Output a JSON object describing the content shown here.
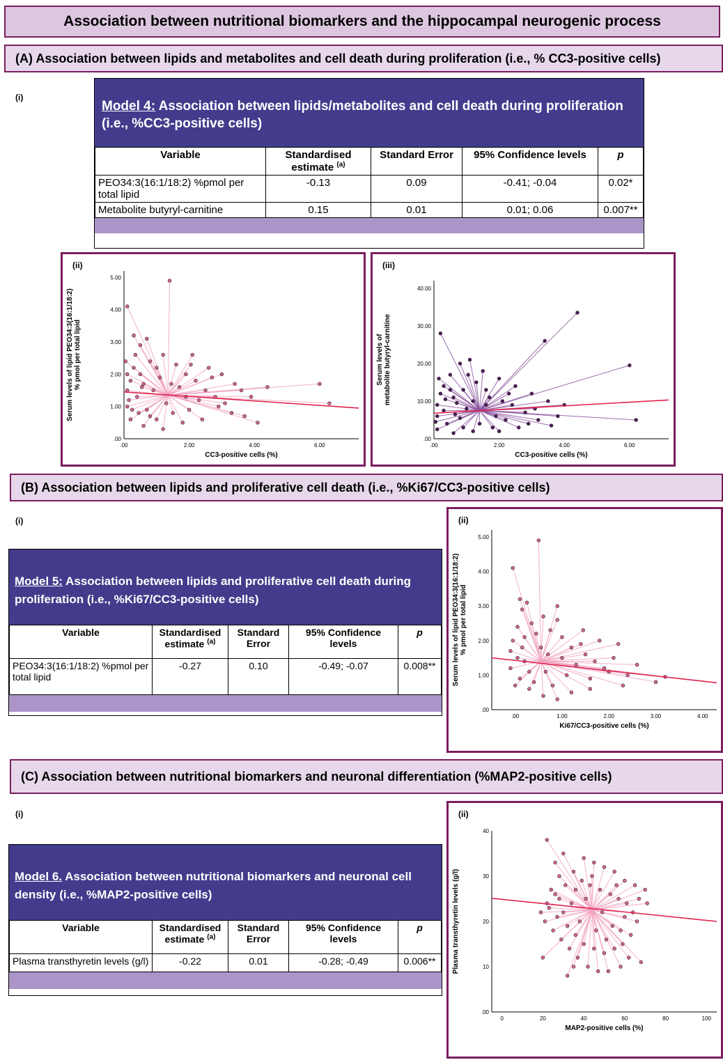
{
  "title": "Association between nutritional biomarkers and the hippocampal neurogenic process",
  "sections": {
    "A": {
      "title": "(A) Association between lipids and metabolites and cell death during proliferation (i.e., % CC3-positive cells)",
      "i_label": "(i)",
      "table": {
        "model_label": "Model 4:",
        "caption": "Association between lipids/metabolites and cell death during proliferation (i.e., %CC3-positive cells)",
        "headers": [
          "Variable",
          "Standardised estimate",
          "Standard Error",
          "95% Confidence levels",
          "p"
        ],
        "sup": "(a)",
        "rows": [
          [
            "PEO34:3(16:1/18:2) %pmol per total lipid",
            "-0.13",
            "0.09",
            "-0.41; -0.04",
            "0.02*"
          ],
          [
            "Metabolite butyryl-carnitine",
            "0.15",
            "0.01",
            "0.01; 0.06",
            "0.007**"
          ]
        ]
      }
    },
    "B": {
      "title": "(B) Association between lipids and proliferative cell death (i.e., %Ki67/CC3-positive cells)",
      "i_label": "(i)",
      "table": {
        "model_label": "Model 5:",
        "caption": "Association between lipids and proliferative cell death during proliferation (i.e., %Ki67/CC3-positive cells)",
        "headers": [
          "Variable",
          "Standardised estimate",
          "Standard Error",
          "95% Confidence levels",
          "p"
        ],
        "sup": "(a)",
        "rows": [
          [
            "PEO34:3(16:1/18:2) %pmol per total lipid",
            "-0.27",
            "0.10",
            "-0.49; -0.07",
            "0.008**"
          ]
        ]
      }
    },
    "C": {
      "title": "(C) Association between nutritional biomarkers and neuronal differentiation (%MAP2-positive cells)",
      "i_label": "(i)",
      "table": {
        "model_label": "Model 6.",
        "caption": "Association between nutritional biomarkers and neuronal cell density (i.e., %MAP2-positive cells)",
        "headers": [
          "Variable",
          "Standardised estimate",
          "Standard Error",
          "95% Confidence levels",
          "p"
        ],
        "sup": "(a)",
        "rows": [
          [
            "Plasma transthyretin levels (g/l)",
            "-0.22",
            "0.01",
            "-0.28; -0.49",
            "0.006**"
          ]
        ]
      }
    }
  },
  "chart_data": [
    {
      "panel": "(ii)",
      "type": "scatter",
      "xlabel": "CC3-positive cells (%)",
      "ylabel": "Serum levels of lipid PEO34:3(16:1/18:2) % pmol per total lipid",
      "xlim": [
        0,
        7.2
      ],
      "ylim": [
        0,
        5.2
      ],
      "xticks": [
        ".00",
        "2.00",
        "4.00",
        "6.00"
      ],
      "xtick_values": [
        0,
        2,
        4,
        6
      ],
      "yticks": [
        ".00",
        "1.00",
        "2.00",
        "3.00",
        "4.00",
        "5.00"
      ],
      "ytick_values": [
        0,
        1,
        2,
        3,
        4,
        5
      ],
      "centroid": [
        1.35,
        1.35
      ],
      "fit": [
        [
          0,
          1.45
        ],
        [
          7.2,
          0.95
        ]
      ],
      "points": [
        [
          0.1,
          4.1
        ],
        [
          1.4,
          4.9
        ],
        [
          0.3,
          3.2
        ],
        [
          0.5,
          2.9
        ],
        [
          0.7,
          3.1
        ],
        [
          2.1,
          2.6
        ],
        [
          2.6,
          2.2
        ],
        [
          3.4,
          1.7
        ],
        [
          6.3,
          1.1
        ],
        [
          6.0,
          1.7
        ],
        [
          4.4,
          1.6
        ],
        [
          3.9,
          1.3
        ],
        [
          4.1,
          0.5
        ],
        [
          3.7,
          0.7
        ],
        [
          2.9,
          1.0
        ],
        [
          2.4,
          0.6
        ],
        [
          1.8,
          0.5
        ],
        [
          1.2,
          0.3
        ],
        [
          0.6,
          0.4
        ],
        [
          0.2,
          0.6
        ],
        [
          0.1,
          1.0
        ],
        [
          0.1,
          1.5
        ],
        [
          0.1,
          2.0
        ],
        [
          0.3,
          2.2
        ],
        [
          0.5,
          2.0
        ],
        [
          0.6,
          1.7
        ],
        [
          0.8,
          2.4
        ],
        [
          1.0,
          2.2
        ],
        [
          1.2,
          2.6
        ],
        [
          1.6,
          2.3
        ],
        [
          1.9,
          2.0
        ],
        [
          2.2,
          1.8
        ],
        [
          2.5,
          1.5
        ],
        [
          2.8,
          1.3
        ],
        [
          3.1,
          1.1
        ],
        [
          3.3,
          0.8
        ],
        [
          2.0,
          0.9
        ],
        [
          1.5,
          0.8
        ],
        [
          1.0,
          0.6
        ],
        [
          0.7,
          0.9
        ],
        [
          0.4,
          1.3
        ],
        [
          0.2,
          1.8
        ],
        [
          0.9,
          1.5
        ],
        [
          1.7,
          1.6
        ],
        [
          2.3,
          1.2
        ],
        [
          3.0,
          2.0
        ],
        [
          0.05,
          2.4
        ],
        [
          0.15,
          1.2
        ],
        [
          0.45,
          0.8
        ],
        [
          1.1,
          1.9
        ],
        [
          1.3,
          1.1
        ],
        [
          0.35,
          2.6
        ],
        [
          2.7,
          1.9
        ],
        [
          3.6,
          1.5
        ],
        [
          0.8,
          0.7
        ],
        [
          1.9,
          1.3
        ],
        [
          0.25,
          0.9
        ],
        [
          0.55,
          1.6
        ],
        [
          1.45,
          1.7
        ],
        [
          2.05,
          2.3
        ]
      ],
      "point_color": "#d06a94",
      "line_color": "#f2a4c0",
      "fit_color": "#e0224f"
    },
    {
      "panel": "(iii)",
      "type": "scatter",
      "xlabel": "CC3-positive cells (%)",
      "ylabel": "Serum levels of metabolite butyryl-carnitine",
      "xlim": [
        0,
        7.2
      ],
      "ylim": [
        0,
        42
      ],
      "xticks": [
        ".00",
        "2.00",
        "4.00",
        "6.00"
      ],
      "xtick_values": [
        0,
        2,
        4,
        6
      ],
      "yticks": [
        ".00",
        "10.00",
        "20.00",
        "30.00",
        "40.00"
      ],
      "ytick_values": [
        0,
        10,
        20,
        30,
        40
      ],
      "centroid": [
        1.4,
        7.5
      ],
      "fit": [
        [
          0,
          6.8
        ],
        [
          7.2,
          10.3
        ]
      ],
      "points": [
        [
          0.2,
          28
        ],
        [
          4.4,
          33.5
        ],
        [
          6.0,
          19.5
        ],
        [
          3.4,
          26
        ],
        [
          6.2,
          5
        ],
        [
          1.1,
          21
        ],
        [
          0.5,
          17
        ],
        [
          0.8,
          20
        ],
        [
          1.5,
          18
        ],
        [
          2.0,
          16
        ],
        [
          2.5,
          14
        ],
        [
          3.0,
          12
        ],
        [
          3.5,
          10
        ],
        [
          4.0,
          9
        ],
        [
          2.2,
          5
        ],
        [
          1.8,
          3
        ],
        [
          1.2,
          2
        ],
        [
          0.6,
          1.5
        ],
        [
          0.1,
          2.5
        ],
        [
          0.1,
          6
        ],
        [
          0.1,
          9
        ],
        [
          0.2,
          12
        ],
        [
          0.3,
          14
        ],
        [
          0.6,
          11
        ],
        [
          0.9,
          13
        ],
        [
          1.3,
          15
        ],
        [
          1.7,
          11
        ],
        [
          2.4,
          9
        ],
        [
          2.8,
          7
        ],
        [
          3.2,
          5
        ],
        [
          3.6,
          3.5
        ],
        [
          0.4,
          4
        ],
        [
          0.8,
          5.5
        ],
        [
          1.0,
          8
        ],
        [
          1.6,
          9
        ],
        [
          2.1,
          10
        ],
        [
          0.3,
          7.5
        ],
        [
          0.7,
          9.5
        ],
        [
          1.4,
          4
        ],
        [
          2.6,
          3
        ],
        [
          3.1,
          8
        ],
        [
          0.15,
          16
        ],
        [
          0.5,
          13
        ],
        [
          1.9,
          6
        ],
        [
          2.3,
          12
        ],
        [
          0.9,
          3
        ],
        [
          1.2,
          10
        ],
        [
          0.35,
          10.5
        ],
        [
          2.9,
          4
        ],
        [
          1.6,
          13
        ],
        [
          0.05,
          4.5
        ],
        [
          0.65,
          6.5
        ],
        [
          2.0,
          2
        ],
        [
          3.8,
          6
        ],
        [
          1.05,
          17
        ]
      ],
      "point_color": "#4a1f5c",
      "line_color": "#8b55a0",
      "fit_color": "#e0224f"
    },
    {
      "panel": "(ii)",
      "type": "scatter",
      "xlabel": "Ki67/CC3-positive cells (%)",
      "ylabel": "Serum levels of lipid PEO34:3(16:1/18:2) % pmol per total lipid",
      "xlim": [
        -0.5,
        4.3
      ],
      "ylim": [
        0,
        5.2
      ],
      "xticks": [
        ".00",
        "1.00",
        "2.00",
        "3.00",
        "4.00"
      ],
      "xtick_values": [
        0,
        1,
        2,
        3,
        4
      ],
      "yticks": [
        ".00",
        "1.00",
        "2.00",
        "3.00",
        "4.00",
        "5.00"
      ],
      "ytick_values": [
        0,
        1,
        2,
        3,
        4,
        5
      ],
      "centroid": [
        0.55,
        1.4
      ],
      "fit": [
        [
          -0.5,
          1.5
        ],
        [
          4.3,
          0.78
        ]
      ],
      "points": [
        [
          -0.05,
          4.1
        ],
        [
          0.5,
          4.9
        ],
        [
          0.1,
          3.2
        ],
        [
          0.15,
          2.9
        ],
        [
          0.25,
          3.1
        ],
        [
          0.9,
          3.0
        ],
        [
          1.4,
          1.9
        ],
        [
          1.8,
          2.0
        ],
        [
          3.2,
          0.95
        ],
        [
          3.0,
          0.8
        ],
        [
          2.1,
          1.5
        ],
        [
          1.9,
          1.2
        ],
        [
          2.3,
          0.7
        ],
        [
          1.6,
          0.6
        ],
        [
          1.2,
          0.5
        ],
        [
          0.9,
          0.3
        ],
        [
          0.6,
          0.4
        ],
        [
          0.3,
          0.6
        ],
        [
          0.1,
          0.9
        ],
        [
          -0.1,
          1.2
        ],
        [
          -0.1,
          1.7
        ],
        [
          -0.05,
          2.0
        ],
        [
          0.05,
          2.4
        ],
        [
          0.2,
          2.1
        ],
        [
          0.35,
          2.5
        ],
        [
          0.45,
          2.2
        ],
        [
          0.6,
          2.7
        ],
        [
          0.75,
          2.3
        ],
        [
          1.0,
          2.1
        ],
        [
          1.2,
          1.8
        ],
        [
          1.5,
          1.6
        ],
        [
          1.7,
          1.4
        ],
        [
          2.0,
          1.1
        ],
        [
          2.4,
          1.0
        ],
        [
          0.4,
          0.8
        ],
        [
          0.8,
          0.7
        ],
        [
          1.1,
          1.0
        ],
        [
          0.2,
          1.4
        ],
        [
          0.7,
          1.6
        ],
        [
          1.3,
          1.3
        ],
        [
          2.2,
          1.9
        ],
        [
          0.0,
          0.7
        ],
        [
          0.55,
          1.8
        ],
        [
          1.0,
          1.5
        ],
        [
          1.6,
          0.9
        ],
        [
          0.3,
          1.1
        ],
        [
          0.05,
          1.5
        ],
        [
          0.9,
          2.6
        ],
        [
          1.45,
          2.3
        ],
        [
          0.65,
          1.1
        ],
        [
          2.6,
          1.3
        ],
        [
          0.15,
          1.8
        ]
      ],
      "point_color": "#d06a94",
      "line_color": "#f2a4c0",
      "fit_color": "#e0224f"
    },
    {
      "panel": "(ii)",
      "type": "scatter",
      "xlabel": "MAP2-positive cells (%)",
      "ylabel": "Plasma transthyretin levels (g/l)",
      "xlim": [
        -5,
        105
      ],
      "ylim": [
        0,
        40
      ],
      "xticks": [
        "0",
        "20",
        "40",
        "60",
        "80",
        "100"
      ],
      "xtick_values": [
        0,
        20,
        40,
        60,
        80,
        100
      ],
      "yticks": [
        ".00",
        "10",
        "20",
        "30",
        "40"
      ],
      "ytick_values": [
        0,
        10,
        20,
        30,
        40
      ],
      "centroid": [
        44,
        22.5
      ],
      "fit": [
        [
          -5,
          25.1
        ],
        [
          105,
          20.0
        ]
      ],
      "points": [
        [
          22,
          38
        ],
        [
          20,
          12
        ],
        [
          32,
          8
        ],
        [
          30,
          35
        ],
        [
          26,
          33
        ],
        [
          28,
          30
        ],
        [
          35,
          31
        ],
        [
          40,
          34
        ],
        [
          45,
          33
        ],
        [
          50,
          32
        ],
        [
          55,
          31
        ],
        [
          60,
          29
        ],
        [
          65,
          28
        ],
        [
          70,
          27
        ],
        [
          68,
          11
        ],
        [
          62,
          12
        ],
        [
          58,
          10
        ],
        [
          52,
          9
        ],
        [
          47,
          9
        ],
        [
          42,
          10
        ],
        [
          37,
          12
        ],
        [
          33,
          14
        ],
        [
          29,
          16
        ],
        [
          25,
          18
        ],
        [
          21,
          20
        ],
        [
          19,
          22
        ],
        [
          22,
          24
        ],
        [
          24,
          27
        ],
        [
          28,
          25
        ],
        [
          31,
          28
        ],
        [
          36,
          27
        ],
        [
          39,
          29
        ],
        [
          43,
          28
        ],
        [
          48,
          27
        ],
        [
          53,
          26
        ],
        [
          57,
          25
        ],
        [
          61,
          24
        ],
        [
          64,
          22
        ],
        [
          66,
          20
        ],
        [
          63,
          17
        ],
        [
          59,
          15
        ],
        [
          55,
          14
        ],
        [
          50,
          13
        ],
        [
          45,
          14
        ],
        [
          40,
          15
        ],
        [
          36,
          17
        ],
        [
          32,
          19
        ],
        [
          27,
          21
        ],
        [
          23,
          23
        ],
        [
          30,
          22
        ],
        [
          38,
          20
        ],
        [
          46,
          18
        ],
        [
          54,
          19
        ],
        [
          60,
          21
        ],
        [
          67,
          25
        ],
        [
          44,
          30
        ],
        [
          34,
          24
        ],
        [
          49,
          22
        ],
        [
          56,
          28
        ],
        [
          41,
          25
        ],
        [
          26,
          26
        ],
        [
          58,
          18
        ],
        [
          71,
          24
        ],
        [
          35,
          10
        ],
        [
          51,
          16
        ]
      ],
      "point_color": "#d06a94",
      "line_color": "#f2a4c0",
      "fit_color": "#e0224f"
    }
  ]
}
